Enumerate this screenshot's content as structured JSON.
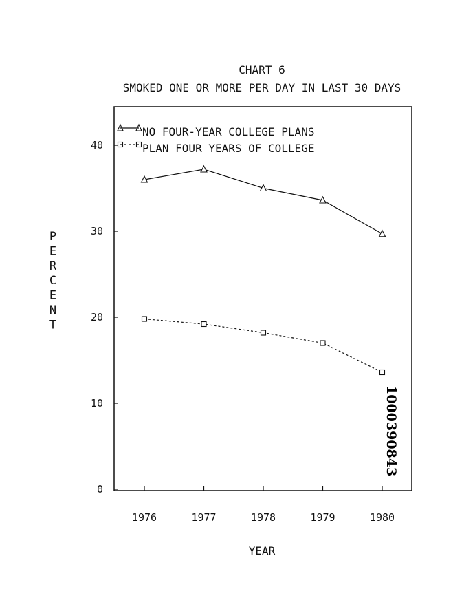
{
  "chart_data": {
    "type": "line",
    "title": "CHART 6",
    "subtitle": "SMOKED ONE OR MORE PER DAY IN LAST 30 DAYS",
    "xlabel": "YEAR",
    "ylabel": "PERCENT",
    "categories": [
      "1976",
      "1977",
      "1978",
      "1979",
      "1980"
    ],
    "ylim": [
      0,
      45
    ],
    "yticks": [
      0,
      10,
      20,
      30,
      40
    ],
    "series": [
      {
        "name": "NO FOUR-YEAR COLLEGE PLANS",
        "marker": "triangle",
        "line": "solid",
        "values": [
          36.0,
          37.2,
          35.0,
          33.6,
          29.7
        ]
      },
      {
        "name": "PLAN FOUR YEARS OF COLLEGE",
        "marker": "square",
        "line": "dashed",
        "values": [
          19.8,
          19.2,
          18.2,
          17.0,
          13.6
        ]
      }
    ],
    "legend_position": "top-left",
    "grid": false
  },
  "annotation": {
    "document_id": "1000390843"
  }
}
